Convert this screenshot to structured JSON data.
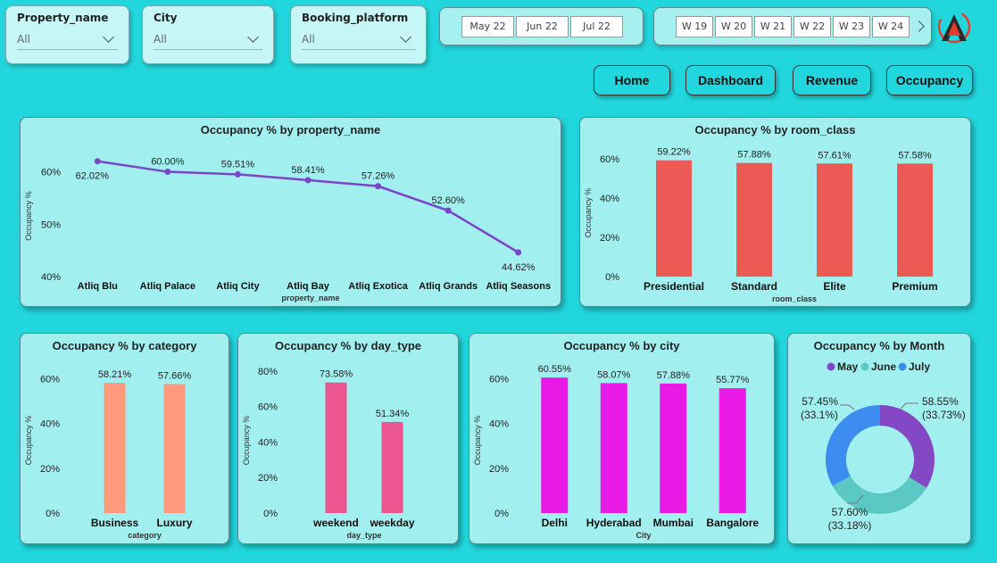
{
  "slicers": [
    {
      "label": "Property_name",
      "value": "All"
    },
    {
      "label": "City",
      "value": "All"
    },
    {
      "label": "Booking_platform",
      "value": "All"
    }
  ],
  "months": [
    "May 22",
    "Jun 22",
    "Jul 22"
  ],
  "weeks": [
    "W 19",
    "W 20",
    "W 21",
    "W 22",
    "W 23",
    "W 24"
  ],
  "nav": [
    "Home",
    "Dashboard",
    "Revenue",
    "Occupancy"
  ],
  "colors": {
    "line": "#7b45c7",
    "room": "#ec5a56",
    "category": "#ff9a7d",
    "daytype": "#ec5690",
    "city": "#e91ae5",
    "may": "#8548c4",
    "june": "#5bc8c3",
    "july": "#3d8df0"
  },
  "charts": {
    "property": {
      "title": "Occupancy % by property_name",
      "ylabel": "Occupancy %",
      "xlabel": "property_name",
      "ticks": [
        "40%",
        "50%",
        "60%"
      ],
      "labels": [
        "62.02%",
        "60.00%",
        "59.51%",
        "58.41%",
        "57.26%",
        "52.60%",
        "44.62%"
      ]
    },
    "room": {
      "title": "Occupancy % by room_class",
      "ylabel": "Occupancy %",
      "xlabel": "room_class",
      "ticks": [
        "0%",
        "20%",
        "40%",
        "60%"
      ],
      "labels": [
        "59.22%",
        "57.88%",
        "57.61%",
        "57.58%"
      ]
    },
    "category": {
      "title": "Occupancy % by category",
      "ylabel": "Occupancy %",
      "xlabel": "category",
      "ticks": [
        "0%",
        "20%",
        "40%",
        "60%"
      ],
      "labels": [
        "58.21%",
        "57.66%"
      ]
    },
    "daytype": {
      "title": "Occupancy % by day_type",
      "ylabel": "Occupancy %",
      "xlabel": "day_type",
      "ticks": [
        "0%",
        "20%",
        "40%",
        "60%",
        "80%"
      ],
      "labels": [
        "73.58%",
        "51.34%"
      ]
    },
    "city": {
      "title": "Occupancy % by city",
      "ylabel": "Occupancy %",
      "xlabel": "City",
      "ticks": [
        "0%",
        "20%",
        "40%",
        "60%"
      ],
      "labels": [
        "60.55%",
        "58.07%",
        "57.88%",
        "55.77%"
      ]
    },
    "month": {
      "title": "Occupancy % by Month",
      "legend": [
        "May",
        "June",
        "July"
      ],
      "labels": [
        [
          "58.55%",
          "(33.73%)"
        ],
        [
          "57.60%",
          "(33.18%)"
        ],
        [
          "57.45%",
          "(33.1%)"
        ]
      ]
    }
  },
  "chart_data": [
    {
      "type": "line",
      "title": "Occupancy % by property_name",
      "xlabel": "property_name",
      "ylabel": "Occupancy %",
      "categories": [
        "Atliq Blu",
        "Atliq Palace",
        "Atliq City",
        "Atliq Bay",
        "Atliq Exotica",
        "Atliq Grands",
        "Atliq Seasons"
      ],
      "values": [
        62.02,
        60.0,
        59.51,
        58.41,
        57.26,
        52.6,
        44.62
      ],
      "ylim": [
        40,
        65
      ]
    },
    {
      "type": "bar",
      "title": "Occupancy % by room_class",
      "xlabel": "room_class",
      "ylabel": "Occupancy %",
      "categories": [
        "Presidential",
        "Standard",
        "Elite",
        "Premium"
      ],
      "values": [
        59.22,
        57.88,
        57.61,
        57.58
      ],
      "ylim": [
        0,
        65
      ]
    },
    {
      "type": "bar",
      "title": "Occupancy % by category",
      "xlabel": "category",
      "ylabel": "Occupancy %",
      "categories": [
        "Business",
        "Luxury"
      ],
      "values": [
        58.21,
        57.66
      ],
      "ylim": [
        0,
        65
      ]
    },
    {
      "type": "bar",
      "title": "Occupancy % by day_type",
      "xlabel": "day_type",
      "ylabel": "Occupancy %",
      "categories": [
        "weekend",
        "weekday"
      ],
      "values": [
        73.58,
        51.34
      ],
      "ylim": [
        0,
        82
      ]
    },
    {
      "type": "bar",
      "title": "Occupancy % by city",
      "xlabel": "City",
      "ylabel": "Occupancy %",
      "categories": [
        "Delhi",
        "Hyderabad",
        "Mumbai",
        "Bangalore"
      ],
      "values": [
        60.55,
        58.07,
        57.88,
        55.77
      ],
      "ylim": [
        0,
        65
      ]
    },
    {
      "type": "pie",
      "title": "Occupancy % by Month",
      "categories": [
        "May",
        "June",
        "July"
      ],
      "values": [
        58.55,
        57.6,
        57.45
      ],
      "shares": [
        33.73,
        33.18,
        33.1
      ]
    }
  ]
}
